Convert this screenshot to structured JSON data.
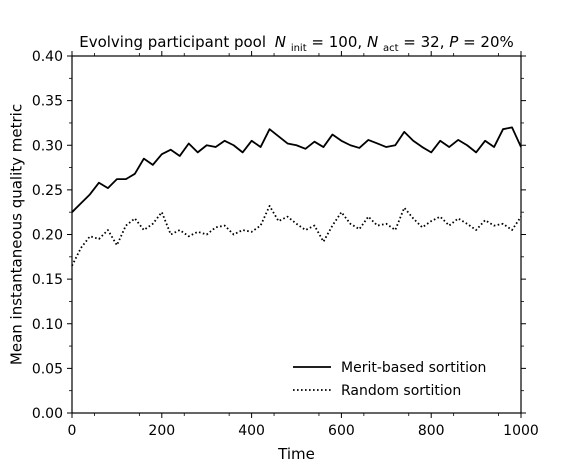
{
  "chart_data": {
    "type": "line",
    "title_parts": {
      "lead": "Evolving participant pool",
      "n_init_label": "N",
      "n_init_sub": "init",
      "n_init_value": " = 100, ",
      "n_act_label": "N",
      "n_act_sub": "act",
      "n_act_value": " = 32, ",
      "p_label": "P",
      "p_value": " = 20%"
    },
    "xlabel": "Time",
    "ylabel": "Mean instantaneous quality metric",
    "xlim": [
      0,
      1000
    ],
    "ylim": [
      0.0,
      0.4
    ],
    "x_ticks": [
      0,
      200,
      400,
      600,
      800,
      1000
    ],
    "x_tick_labels": [
      "0",
      "200",
      "400",
      "600",
      "800",
      "1000"
    ],
    "y_ticks": [
      0.0,
      0.05,
      0.1,
      0.15,
      0.2,
      0.25,
      0.3,
      0.35,
      0.4
    ],
    "y_tick_labels": [
      "0.00",
      "0.05",
      "0.10",
      "0.15",
      "0.20",
      "0.25",
      "0.30",
      "0.35",
      "0.40"
    ],
    "grid": false,
    "legend_position": "lower-right",
    "x": [
      0,
      20,
      40,
      60,
      80,
      100,
      120,
      140,
      160,
      180,
      200,
      220,
      240,
      260,
      280,
      300,
      320,
      340,
      360,
      380,
      400,
      420,
      440,
      460,
      480,
      500,
      520,
      540,
      560,
      580,
      600,
      620,
      640,
      660,
      680,
      700,
      720,
      740,
      760,
      780,
      800,
      820,
      840,
      860,
      880,
      900,
      920,
      940,
      960,
      980,
      1000
    ],
    "series": [
      {
        "name": "Merit-based sortition",
        "style": "solid",
        "color": "#000000",
        "values": [
          0.225,
          0.235,
          0.245,
          0.258,
          0.252,
          0.262,
          0.262,
          0.268,
          0.285,
          0.278,
          0.29,
          0.295,
          0.288,
          0.302,
          0.292,
          0.3,
          0.298,
          0.305,
          0.3,
          0.292,
          0.305,
          0.298,
          0.318,
          0.31,
          0.302,
          0.3,
          0.296,
          0.304,
          0.298,
          0.312,
          0.305,
          0.3,
          0.297,
          0.306,
          0.302,
          0.298,
          0.3,
          0.315,
          0.305,
          0.298,
          0.292,
          0.305,
          0.298,
          0.306,
          0.3,
          0.292,
          0.305,
          0.298,
          0.318,
          0.32,
          0.298
        ]
      },
      {
        "name": "Random sortition",
        "style": "dotted",
        "color": "#000000",
        "values": [
          0.165,
          0.185,
          0.198,
          0.195,
          0.205,
          0.188,
          0.21,
          0.218,
          0.205,
          0.212,
          0.225,
          0.2,
          0.205,
          0.198,
          0.203,
          0.2,
          0.208,
          0.21,
          0.2,
          0.205,
          0.203,
          0.21,
          0.232,
          0.215,
          0.22,
          0.212,
          0.205,
          0.21,
          0.192,
          0.21,
          0.225,
          0.212,
          0.206,
          0.22,
          0.21,
          0.212,
          0.205,
          0.23,
          0.218,
          0.208,
          0.215,
          0.22,
          0.21,
          0.218,
          0.212,
          0.205,
          0.216,
          0.21,
          0.212,
          0.205,
          0.22
        ]
      }
    ]
  }
}
